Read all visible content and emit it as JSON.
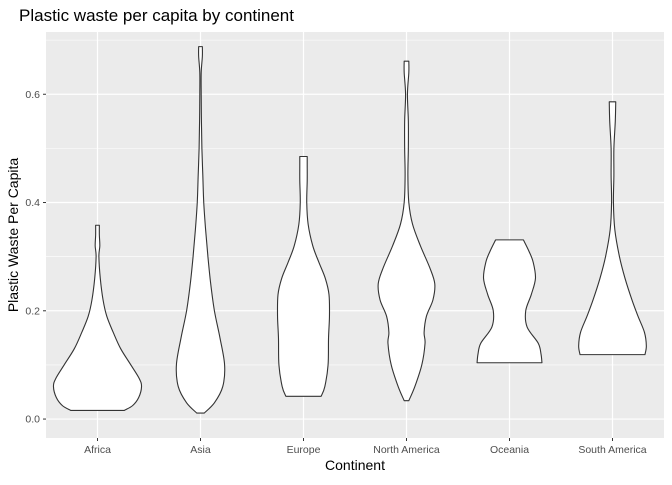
{
  "chart_data": {
    "type": "violin",
    "title": "Plastic waste per capita by continent",
    "xlabel": "Continent",
    "ylabel": "Plastic Waste Per Capita",
    "ylim": [
      -0.035,
      0.715
    ],
    "yticks": [
      0.0,
      0.2,
      0.4,
      0.6
    ],
    "ytick_labels": [
      "0.0",
      "0.2",
      "0.4",
      "0.6"
    ],
    "grid": true,
    "legend": "none",
    "colors": {
      "panel": "#ebebeb",
      "grid": "#ffffff",
      "fill": "#ffffff",
      "outline": "#333333",
      "text": "#000000",
      "tick_text": "#4d4d4d"
    },
    "categories": [
      "Africa",
      "Asia",
      "Europe",
      "North America",
      "Oceania",
      "South America"
    ],
    "series": [
      {
        "category": "Africa",
        "ymin": 0.016,
        "ymax": 0.358,
        "profile": [
          [
            0.016,
            0.58
          ],
          [
            0.025,
            0.76
          ],
          [
            0.04,
            0.89
          ],
          [
            0.06,
            0.95
          ],
          [
            0.075,
            0.9
          ],
          [
            0.1,
            0.72
          ],
          [
            0.13,
            0.5
          ],
          [
            0.16,
            0.34
          ],
          [
            0.19,
            0.2
          ],
          [
            0.22,
            0.12
          ],
          [
            0.26,
            0.06
          ],
          [
            0.3,
            0.03
          ],
          [
            0.32,
            0.05
          ],
          [
            0.34,
            0.04
          ],
          [
            0.358,
            0.04
          ]
        ]
      },
      {
        "category": "Asia",
        "ymin": 0.011,
        "ymax": 0.688,
        "profile": [
          [
            0.011,
            0.08
          ],
          [
            0.03,
            0.3
          ],
          [
            0.06,
            0.48
          ],
          [
            0.1,
            0.52
          ],
          [
            0.15,
            0.42
          ],
          [
            0.2,
            0.3
          ],
          [
            0.25,
            0.22
          ],
          [
            0.3,
            0.16
          ],
          [
            0.35,
            0.11
          ],
          [
            0.4,
            0.07
          ],
          [
            0.45,
            0.05
          ],
          [
            0.5,
            0.03
          ],
          [
            0.55,
            0.02
          ],
          [
            0.6,
            0.015
          ],
          [
            0.64,
            0.015
          ],
          [
            0.67,
            0.04
          ],
          [
            0.688,
            0.04
          ]
        ]
      },
      {
        "category": "Europe",
        "ymin": 0.042,
        "ymax": 0.485,
        "profile": [
          [
            0.042,
            0.38
          ],
          [
            0.06,
            0.46
          ],
          [
            0.1,
            0.53
          ],
          [
            0.15,
            0.54
          ],
          [
            0.19,
            0.56
          ],
          [
            0.23,
            0.55
          ],
          [
            0.26,
            0.47
          ],
          [
            0.29,
            0.33
          ],
          [
            0.32,
            0.2
          ],
          [
            0.36,
            0.1
          ],
          [
            0.4,
            0.07
          ],
          [
            0.44,
            0.08
          ],
          [
            0.47,
            0.08
          ],
          [
            0.485,
            0.08
          ]
        ]
      },
      {
        "category": "North America",
        "ymin": 0.034,
        "ymax": 0.661,
        "profile": [
          [
            0.034,
            0.05
          ],
          [
            0.06,
            0.18
          ],
          [
            0.1,
            0.33
          ],
          [
            0.14,
            0.4
          ],
          [
            0.16,
            0.38
          ],
          [
            0.19,
            0.43
          ],
          [
            0.22,
            0.57
          ],
          [
            0.25,
            0.61
          ],
          [
            0.28,
            0.5
          ],
          [
            0.32,
            0.3
          ],
          [
            0.36,
            0.13
          ],
          [
            0.4,
            0.05
          ],
          [
            0.45,
            0.03
          ],
          [
            0.5,
            0.04
          ],
          [
            0.55,
            0.04
          ],
          [
            0.6,
            0.02
          ],
          [
            0.64,
            0.05
          ],
          [
            0.661,
            0.05
          ]
        ]
      },
      {
        "category": "Oceania",
        "ymin": 0.104,
        "ymax": 0.331,
        "profile": [
          [
            0.104,
            0.7
          ],
          [
            0.12,
            0.68
          ],
          [
            0.14,
            0.62
          ],
          [
            0.17,
            0.38
          ],
          [
            0.2,
            0.35
          ],
          [
            0.23,
            0.47
          ],
          [
            0.26,
            0.56
          ],
          [
            0.29,
            0.51
          ],
          [
            0.31,
            0.42
          ],
          [
            0.331,
            0.3
          ]
        ]
      },
      {
        "category": "South America",
        "ymin": 0.119,
        "ymax": 0.586,
        "profile": [
          [
            0.119,
            0.7
          ],
          [
            0.135,
            0.73
          ],
          [
            0.16,
            0.69
          ],
          [
            0.19,
            0.55
          ],
          [
            0.22,
            0.42
          ],
          [
            0.26,
            0.27
          ],
          [
            0.3,
            0.15
          ],
          [
            0.35,
            0.05
          ],
          [
            0.4,
            0.02
          ],
          [
            0.45,
            0.03
          ],
          [
            0.5,
            0.03
          ],
          [
            0.55,
            0.06
          ],
          [
            0.586,
            0.07
          ]
        ]
      }
    ]
  }
}
